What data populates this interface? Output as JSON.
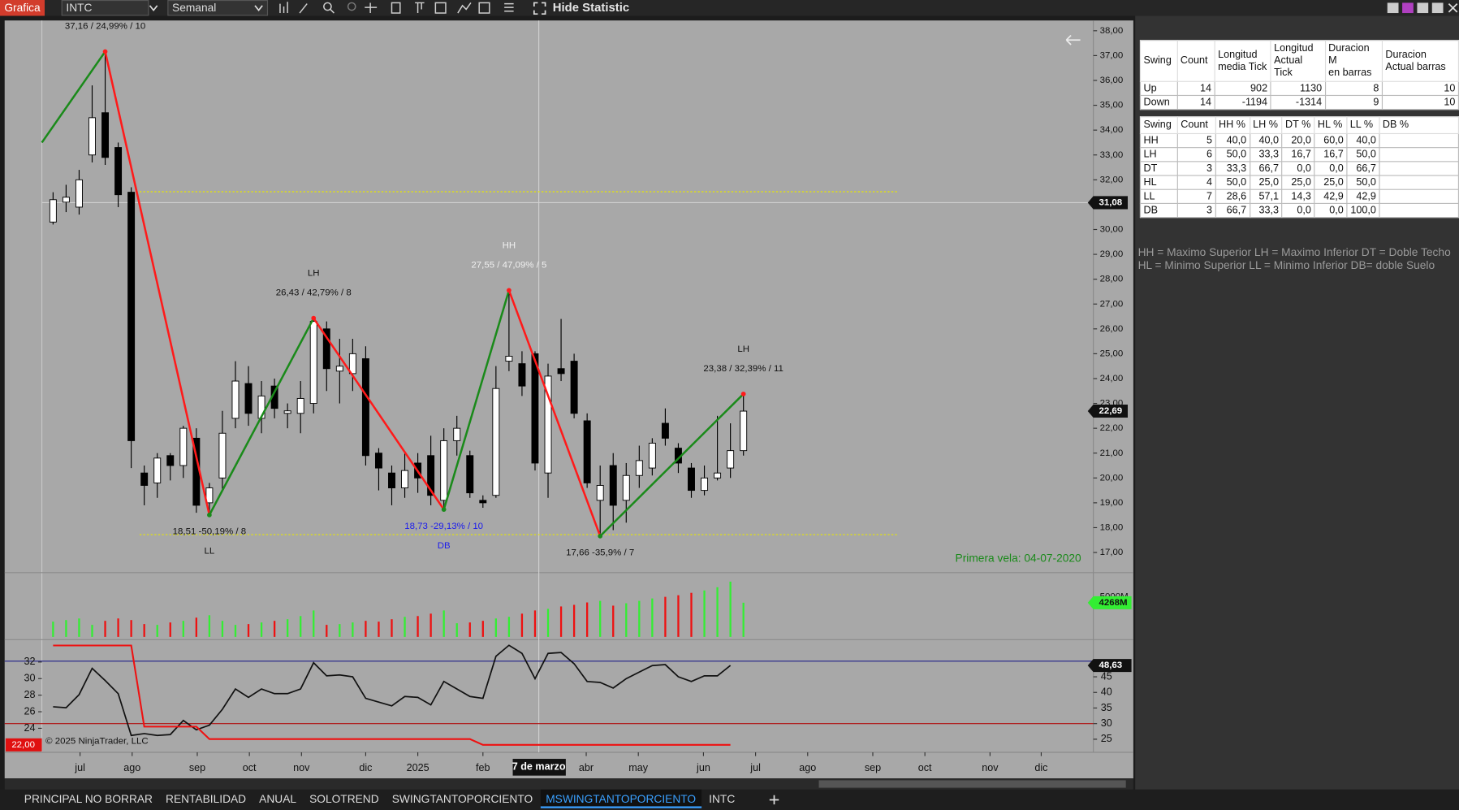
{
  "toolbar": {
    "app": "Grafica",
    "instrument": "INTC",
    "period": "Semanal",
    "statistic_button": "Hide Statistic"
  },
  "chart_data": [
    {
      "type": "candlestick",
      "x": [
        0,
        1,
        2,
        3,
        4,
        5,
        6,
        7,
        8,
        9,
        10,
        11,
        12,
        13,
        14,
        15,
        16,
        17,
        18,
        19,
        20,
        21,
        22,
        23,
        24,
        25,
        26,
        27,
        28,
        29,
        30,
        31,
        32,
        33,
        34,
        35,
        36,
        37,
        38,
        39,
        40,
        41,
        42,
        43,
        44,
        45,
        46,
        47,
        48,
        49,
        50,
        51,
        52,
        53
      ],
      "open": [
        30.3,
        31.1,
        30.9,
        33.0,
        34.7,
        33.3,
        31.5,
        20.2,
        19.8,
        20.9,
        20.5,
        21.6,
        19.0,
        20.0,
        22.4,
        23.8,
        22.4,
        23.7,
        22.6,
        22.6,
        23.0,
        26.0,
        24.3,
        24.2,
        24.8,
        21.0,
        20.2,
        19.6,
        20.6,
        20.9,
        19.1,
        21.5,
        20.9,
        19.1,
        19.3,
        24.7,
        24.6,
        25.0,
        20.2,
        24.4,
        24.7,
        22.3,
        19.1,
        20.5,
        19.1,
        20.1,
        20.4,
        22.2,
        21.2,
        20.4,
        19.5,
        20.0,
        20.4,
        21.1
      ],
      "high": [
        31.5,
        31.8,
        32.4,
        35.8,
        37.16,
        33.5,
        31.7,
        20.5,
        21.0,
        21.0,
        22.1,
        22.0,
        19.8,
        22.7,
        24.7,
        24.5,
        23.9,
        24.0,
        23.0,
        23.9,
        26.43,
        26.3,
        25.6,
        25.6,
        25.3,
        21.2,
        20.5,
        21.0,
        21.0,
        21.7,
        22.0,
        22.5,
        21.1,
        19.3,
        24.5,
        27.55,
        25.1,
        25.1,
        24.6,
        26.4,
        25.0,
        22.6,
        20.5,
        21.0,
        20.6,
        21.3,
        21.6,
        22.8,
        21.4,
        20.6,
        20.5,
        22.5,
        22.2,
        23.38
      ],
      "low": [
        30.2,
        30.7,
        30.6,
        32.7,
        32.6,
        30.9,
        20.4,
        18.9,
        19.2,
        19.9,
        20.0,
        18.6,
        18.51,
        19.5,
        22.0,
        22.1,
        21.8,
        22.4,
        22.0,
        21.8,
        22.6,
        23.5,
        23.0,
        23.5,
        20.5,
        19.5,
        18.9,
        19.2,
        19.4,
        18.9,
        18.73,
        20.9,
        19.2,
        18.8,
        19.2,
        24.3,
        23.3,
        20.3,
        19.2,
        23.9,
        22.4,
        19.6,
        17.66,
        17.9,
        18.2,
        19.6,
        20.1,
        21.3,
        20.2,
        19.2,
        19.3,
        19.9,
        20.0,
        20.9
      ],
      "close": [
        31.2,
        31.3,
        32.0,
        34.5,
        32.9,
        31.4,
        21.5,
        19.7,
        20.8,
        20.5,
        22.0,
        18.9,
        19.6,
        21.8,
        23.9,
        22.6,
        23.3,
        22.8,
        22.7,
        23.2,
        26.3,
        24.4,
        24.5,
        25.0,
        20.9,
        20.4,
        19.6,
        20.3,
        20.0,
        19.3,
        21.5,
        22.0,
        19.4,
        19.0,
        23.6,
        24.9,
        23.7,
        20.6,
        24.1,
        24.2,
        22.6,
        19.8,
        19.7,
        18.9,
        20.1,
        20.7,
        21.4,
        21.6,
        20.6,
        19.5,
        20.0,
        20.2,
        21.1,
        22.69
      ],
      "up_color": "#ffffff",
      "down_color": "#000000",
      "wick_color": "#000000",
      "xlim": [
        -0.86,
        79.86
      ],
      "xticks": [
        {
          "value": 2.07,
          "label": "jul"
        },
        {
          "value": 6.07,
          "label": "ago"
        },
        {
          "value": 11.07,
          "label": "sep"
        },
        {
          "value": 15.07,
          "label": "oct"
        },
        {
          "value": 19.07,
          "label": "nov"
        },
        {
          "value": 24,
          "label": "dic"
        },
        {
          "value": 28,
          "label": "2025"
        },
        {
          "value": 33,
          "label": "feb"
        },
        {
          "value": 40.93,
          "label": "abr"
        },
        {
          "value": 44.93,
          "label": "may"
        },
        {
          "value": 49.93,
          "label": "jun"
        },
        {
          "value": 53.93,
          "label": "jul"
        },
        {
          "value": 57.93,
          "label": "ago"
        },
        {
          "value": 62.93,
          "label": "sep"
        },
        {
          "value": 66.93,
          "label": "oct"
        },
        {
          "value": 71.93,
          "label": "nov"
        },
        {
          "value": 75.86,
          "label": "dic"
        }
      ],
      "ylim": [
        16.19,
        38.3
      ],
      "yticks": [
        {
          "value": 17,
          "label": "17,00"
        },
        {
          "value": 18,
          "label": "18,00"
        },
        {
          "value": 19,
          "label": "19,00"
        },
        {
          "value": 20,
          "label": "20,00"
        },
        {
          "value": 21,
          "label": "21,00"
        },
        {
          "value": 22,
          "label": "22,00"
        },
        {
          "value": 23,
          "label": "23,00"
        },
        {
          "value": 24,
          "label": "24,00"
        },
        {
          "value": 25,
          "label": "25,00"
        },
        {
          "value": 26,
          "label": "26,00"
        },
        {
          "value": 27,
          "label": "27,00"
        },
        {
          "value": 28,
          "label": "28,00"
        },
        {
          "value": 29,
          "label": "29,00"
        },
        {
          "value": 30,
          "label": "30,00"
        },
        {
          "value": 31,
          "label": "31,00"
        },
        {
          "value": 32,
          "label": "32,00"
        },
        {
          "value": 33,
          "label": "33,00"
        },
        {
          "value": 34,
          "label": "34,00"
        },
        {
          "value": 35,
          "label": "35,00"
        },
        {
          "value": 36,
          "label": "36,00"
        },
        {
          "value": 37,
          "label": "37,00"
        },
        {
          "value": 38,
          "label": "38,00"
        }
      ],
      "swings": {
        "x": [
          -0.86,
          4,
          12,
          20,
          30,
          35,
          42,
          53
        ],
        "values": [
          33.5,
          37.16,
          18.51,
          26.43,
          18.73,
          27.55,
          17.66,
          23.38
        ],
        "labels": [
          null,
          "37,16 / 24,99% / 10",
          "18,51 -50,19% / 8",
          "26,43 / 42,79% / 8",
          "18,73 -29,13% / 10",
          "27,55 / 47,09% / 5",
          "17,66 -35,9% / 7",
          "23,38 / 32,39% / 11"
        ],
        "types": [
          null,
          null,
          "LL",
          "LH",
          "DB",
          "HH",
          null,
          "LH"
        ],
        "label_colors": [
          null,
          "#111111",
          "#111111",
          "#111111",
          "#1a1aee",
          "#f0f0f0",
          "#111111",
          "#111111"
        ],
        "up_color": "#1a8a1a",
        "down_color": "#ff1a1a"
      },
      "levels": [
        31.52,
        17.72
      ],
      "level_span": [
        6.64,
        64.86
      ],
      "level_color": "#e8e800",
      "crosshair": {
        "x": 37.29,
        "x_label": "7 de marzo",
        "y": 31.08,
        "y_label": "31,08"
      },
      "price_marker": {
        "value": 22.69,
        "label": "22,69"
      },
      "first_bar_note": "Primera vela: 04-07-2020",
      "copyright": "© 2025 NinjaTrader, LLC"
    },
    {
      "type": "bar",
      "values": [
        1900,
        2100,
        2300,
        1500,
        2000,
        2300,
        2100,
        1600,
        1500,
        1800,
        2000,
        2400,
        2700,
        2000,
        1500,
        1600,
        1800,
        2000,
        2200,
        2600,
        3300,
        1500,
        1600,
        1800,
        2000,
        1900,
        2200,
        2500,
        2600,
        2900,
        3300,
        1700,
        1800,
        2000,
        2300,
        2500,
        2900,
        3300,
        3500,
        3800,
        4000,
        4300,
        4500,
        3900,
        4200,
        4500,
        4800,
        5000,
        5200,
        5500,
        5800,
        6200,
        6900,
        4268
      ],
      "up_color": "#33ee33",
      "down_color": "#ee1111",
      "ylim": [
        -350,
        8025
      ],
      "yticks": [
        {
          "value": 5000,
          "label": "5000M"
        }
      ],
      "current_label": "4268M"
    },
    {
      "type": "line",
      "ylim": [
        21.1,
        34.7
      ],
      "yticks": [
        24,
        26,
        28,
        30,
        32
      ],
      "y2lim": [
        20.8,
        56.9
      ],
      "y2ticks": [
        25,
        30,
        35,
        40,
        45
      ],
      "series": [
        {
          "color": "#111111",
          "axis": "y2",
          "values": [
            35.4,
            35.1,
            39.3,
            47.7,
            43.8,
            39.6,
            26.2,
            26.8,
            26.2,
            26.5,
            31.0,
            28.0,
            29.5,
            34.6,
            41.1,
            38.4,
            41.1,
            39.6,
            39.6,
            41.1,
            49.5,
            45.3,
            45.6,
            45.0,
            38.1,
            36.9,
            35.7,
            38.7,
            38.4,
            36.0,
            43.5,
            41.1,
            38.7,
            38.1,
            51.6,
            55.1,
            52.5,
            44.4,
            52.5,
            52.8,
            49.2,
            43.5,
            43.2,
            41.4,
            44.4,
            46.5,
            48.6,
            48.9,
            45.0,
            43.5,
            45.3,
            45.3,
            48.63
          ]
        },
        {
          "color": "#ee1111",
          "values": [
            34.0,
            34.0,
            34.0,
            34.0,
            34.0,
            34.0,
            34.0,
            24.2,
            24.2,
            24.2,
            24.2,
            24.2,
            22.7,
            22.7,
            22.7,
            22.7,
            22.7,
            22.7,
            22.7,
            22.7,
            22.7,
            22.7,
            22.7,
            22.7,
            22.7,
            22.7,
            22.7,
            22.7,
            22.7,
            22.7,
            22.7,
            22.7,
            22.7,
            22.0,
            22.0,
            22.0,
            22.0,
            22.0,
            22.0,
            22.0,
            22.0,
            22.0,
            22.0,
            22.0,
            22.0,
            22.0,
            22.0,
            22.0,
            22.0,
            22.0,
            22.0,
            22.0,
            22.0
          ]
        }
      ],
      "y2_levels": [
        50,
        30
      ],
      "level_colors": [
        "#20208a",
        "#b01010"
      ],
      "y2_label": "48,63",
      "y_label": "22,00"
    }
  ],
  "statistics": {
    "summary": {
      "header": [
        "Swing",
        "Count",
        "Longitud\nmedia Tick",
        "Longitud\nActual Tick",
        "Duracion M\nen barras",
        "Duracion\nActual barras"
      ],
      "rows": [
        [
          "Up",
          "14",
          "902",
          "1130",
          "8",
          "10"
        ],
        [
          "Down",
          "14",
          "-1194",
          "-1314",
          "9",
          "10"
        ]
      ]
    },
    "percentages": {
      "header": [
        "Swing",
        "Count",
        "HH %",
        "LH %",
        "DT %",
        "HL %",
        "LL %",
        "DB %"
      ],
      "rows": [
        [
          "HH",
          "5",
          "40,0",
          "40,0",
          "20,0",
          "60,0",
          "40,0"
        ],
        [
          "LH",
          "6",
          "50,0",
          "33,3",
          "16,7",
          "16,7",
          "50,0"
        ],
        [
          "DT",
          "3",
          "33,3",
          "66,7",
          "0,0",
          "0,0",
          "66,7"
        ],
        [
          "HL",
          "4",
          "50,0",
          "25,0",
          "25,0",
          "25,0",
          "50,0"
        ],
        [
          "LL",
          "7",
          "28,6",
          "57,1",
          "14,3",
          "42,9",
          "42,9"
        ],
        [
          "DB",
          "3",
          "66,7",
          "33,3",
          "0,0",
          "0,0",
          "100,0"
        ]
      ]
    },
    "legend": [
      "HH = Maximo Superior LH = Maximo Inferior DT = Doble Techo",
      "HL = Minimo Superior LL = Minimo Inferior  DB= doble Suelo"
    ]
  },
  "tabs": {
    "items": [
      "PRINCIPAL NO BORRAR",
      "RENTABILIDAD",
      "ANUAL",
      "SOLOTREND",
      "SWINGTANTOPORCIENTO",
      "MSWINGTANTOPORCIENTO",
      "INTC"
    ],
    "active": 5
  }
}
